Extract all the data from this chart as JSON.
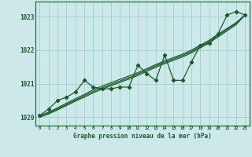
{
  "title": "Graphe pression niveau de la mer (hPa)",
  "bg_color": "#cce8e8",
  "grid_color": "#99cccc",
  "line_color": "#1a5c2a",
  "x_values": [
    0,
    1,
    2,
    3,
    4,
    5,
    6,
    7,
    8,
    9,
    10,
    11,
    12,
    13,
    14,
    15,
    16,
    17,
    18,
    19,
    20,
    21,
    22,
    23
  ],
  "y_main": [
    1020.05,
    1020.25,
    1020.5,
    1020.6,
    1020.75,
    1021.1,
    1020.9,
    1020.85,
    1020.85,
    1020.9,
    1020.9,
    1021.55,
    1021.3,
    1021.1,
    1021.85,
    1021.1,
    1021.1,
    1021.65,
    1022.15,
    1022.2,
    1022.5,
    1023.05,
    1023.15,
    1023.05
  ],
  "y_smooth1": [
    1020.05,
    1020.15,
    1020.28,
    1020.42,
    1020.55,
    1020.68,
    1020.82,
    1020.93,
    1021.03,
    1021.13,
    1021.23,
    1021.33,
    1021.45,
    1021.57,
    1021.68,
    1021.78,
    1021.88,
    1022.0,
    1022.15,
    1022.3,
    1022.48,
    1022.65,
    1022.82,
    1023.05
  ],
  "y_smooth2": [
    1020.0,
    1020.1,
    1020.22,
    1020.35,
    1020.48,
    1020.6,
    1020.73,
    1020.84,
    1020.94,
    1021.04,
    1021.14,
    1021.25,
    1021.37,
    1021.49,
    1021.6,
    1021.7,
    1021.8,
    1021.92,
    1022.07,
    1022.22,
    1022.4,
    1022.58,
    1022.76,
    1023.05
  ],
  "y_smooth3": [
    1020.0,
    1020.12,
    1020.25,
    1020.38,
    1020.51,
    1020.64,
    1020.77,
    1020.88,
    1020.98,
    1021.08,
    1021.18,
    1021.29,
    1021.41,
    1021.53,
    1021.64,
    1021.74,
    1021.84,
    1021.96,
    1022.11,
    1022.26,
    1022.44,
    1022.62,
    1022.8,
    1023.05
  ],
  "ylim": [
    1019.75,
    1023.45
  ],
  "yticks": [
    1020,
    1021,
    1022,
    1023
  ],
  "xlim": [
    -0.5,
    23.5
  ]
}
